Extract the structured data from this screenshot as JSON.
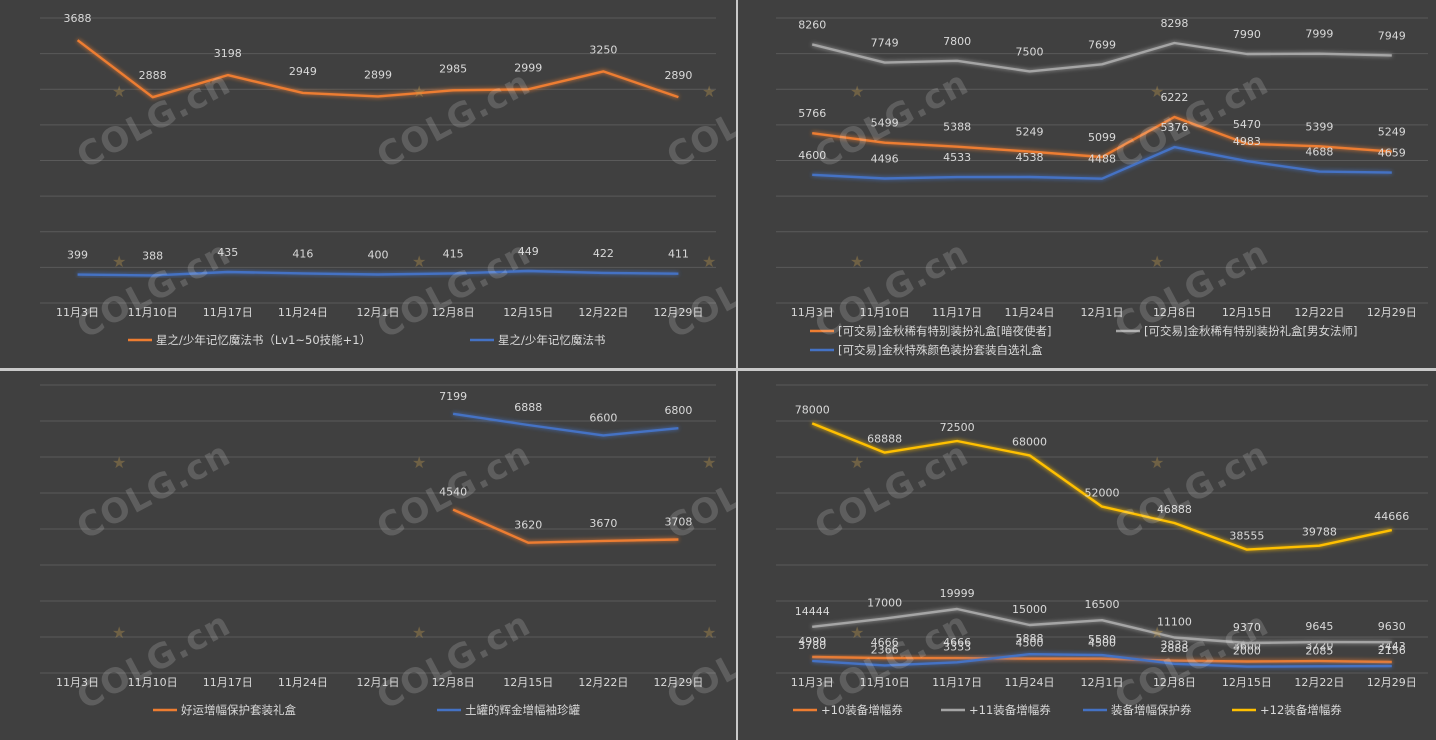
{
  "watermark": "COLG.cn",
  "watermark_icon": "star-icon",
  "chart_data": [
    {
      "type": "line",
      "title": "",
      "categories": [
        "11月3日",
        "11月10日",
        "11月17日",
        "11月24日",
        "12月1日",
        "12月8日",
        "12月15日",
        "12月22日",
        "12月29日"
      ],
      "ylim": [
        0,
        4000
      ],
      "grid": true,
      "legend": "bottom",
      "series": [
        {
          "name": "星之/少年记忆魔法书（Lv1~50技能+1）",
          "color": "#ED7D31",
          "values": [
            3688,
            2888,
            3198,
            2949,
            2899,
            2985,
            2999,
            3250,
            2890
          ]
        },
        {
          "name": "星之/少年记忆魔法书",
          "color": "#4472C4",
          "values": [
            399,
            388,
            435,
            416,
            400,
            415,
            449,
            422,
            411
          ]
        }
      ]
    },
    {
      "type": "line",
      "title": "",
      "categories": [
        "11月3日",
        "11月10日",
        "11月17日",
        "11月24日",
        "12月1日",
        "12月8日",
        "12月15日",
        "12月22日",
        "12月29日"
      ],
      "ylim": [
        1000,
        9000
      ],
      "grid": true,
      "legend": "bottom",
      "series": [
        {
          "name": "[可交易]金秋稀有特别装扮礼盒[暗夜使者]",
          "color": "#ED7D31",
          "values": [
            5766,
            5499,
            5388,
            5249,
            5099,
            6222,
            5470,
            5399,
            5249
          ]
        },
        {
          "name": "[可交易]金秋稀有特别装扮礼盒[男女法师]",
          "color": "#A5A5A5",
          "values": [
            8260,
            7749,
            7800,
            7500,
            7699,
            8298,
            7990,
            7999,
            7949
          ]
        },
        {
          "name": "[可交易]金秋特殊颜色装扮套装自选礼盒",
          "color": "#4472C4",
          "values": [
            4600,
            4496,
            4533,
            4538,
            4488,
            5376,
            4983,
            4688,
            4659
          ]
        }
      ]
    },
    {
      "type": "line",
      "title": "",
      "categories": [
        "11月3日",
        "11月10日",
        "11月17日",
        "11月24日",
        "12月1日",
        "12月8日",
        "12月15日",
        "12月22日",
        "12月29日"
      ],
      "ylim": [
        0,
        8000
      ],
      "grid": true,
      "legend": "bottom",
      "series": [
        {
          "name": "好运增幅保护套装礼盒",
          "color": "#ED7D31",
          "values": [
            null,
            null,
            null,
            null,
            null,
            4540,
            3620,
            3670,
            3708
          ]
        },
        {
          "name": "土罐的辉金增幅袖珍罐",
          "color": "#4472C4",
          "values": [
            null,
            null,
            null,
            null,
            null,
            7199,
            6888,
            6600,
            6800
          ]
        }
      ]
    },
    {
      "type": "line",
      "title": "",
      "categories": [
        "11月3日",
        "11月10日",
        "11月17日",
        "11月24日",
        "12月1日",
        "12月8日",
        "12月15日",
        "12月22日",
        "12月29日"
      ],
      "ylim": [
        0,
        90000
      ],
      "grid": true,
      "legend": "bottom",
      "series": [
        {
          "name": "+10装备增幅券",
          "color": "#ED7D31",
          "values": [
            4999,
            4666,
            4666,
            4500,
            4500,
            3833,
            3600,
            3720,
            3443
          ]
        },
        {
          "name": "+11装备增幅券",
          "color": "#A5A5A5",
          "values": [
            14444,
            17000,
            19999,
            15000,
            16500,
            11100,
            9370,
            9645,
            9630
          ]
        },
        {
          "name": "装备增幅保护券",
          "color": "#4472C4",
          "values": [
            3780,
            2366,
            3333,
            5888,
            5580,
            2888,
            2000,
            2085,
            2156
          ]
        },
        {
          "name": "+12装备增幅券",
          "color": "#FFC000",
          "values": [
            78000,
            68888,
            72500,
            68000,
            52000,
            46888,
            38555,
            39788,
            44666
          ]
        }
      ]
    }
  ]
}
